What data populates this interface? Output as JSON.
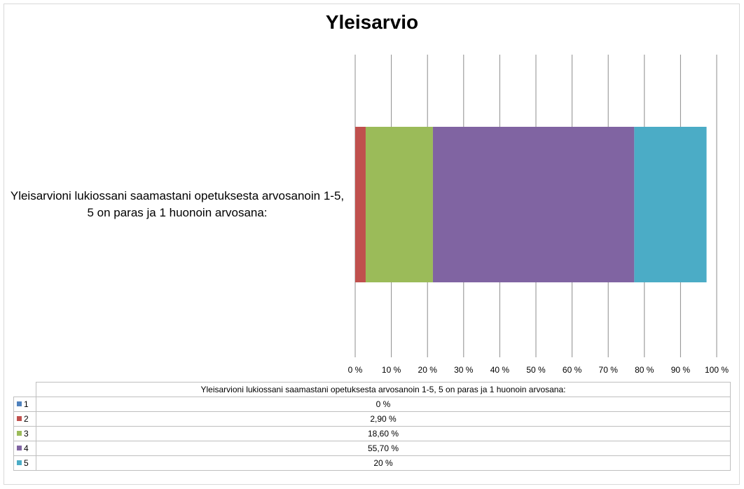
{
  "chart_data": {
    "type": "bar",
    "orientation": "horizontal",
    "stacking": "percent",
    "title": "Yleisarvio",
    "categories": [
      "Yleisarvioni lukiossani saamastani opetuksesta arvosanoin 1-5, 5 on paras ja 1 huonoin arvosana:"
    ],
    "series": [
      {
        "name": "1",
        "values": [
          0
        ],
        "label": "0 %",
        "color": "#4f81bd"
      },
      {
        "name": "2",
        "values": [
          2.9
        ],
        "label": "2,90 %",
        "color": "#c0504d"
      },
      {
        "name": "3",
        "values": [
          18.6
        ],
        "label": "18,60 %",
        "color": "#9bbb59"
      },
      {
        "name": "4",
        "values": [
          55.7
        ],
        "label": "55,70 %",
        "color": "#8064a2"
      },
      {
        "name": "5",
        "values": [
          20
        ],
        "label": "20 %",
        "color": "#4bacc6"
      }
    ],
    "xlim": [
      0,
      100
    ],
    "xticks": [
      "0 %",
      "10 %",
      "20 %",
      "30 %",
      "40 %",
      "50 %",
      "60 %",
      "70 %",
      "80 %",
      "90 %",
      "100 %"
    ],
    "grid": "vertical",
    "legend": "data table below chart"
  }
}
